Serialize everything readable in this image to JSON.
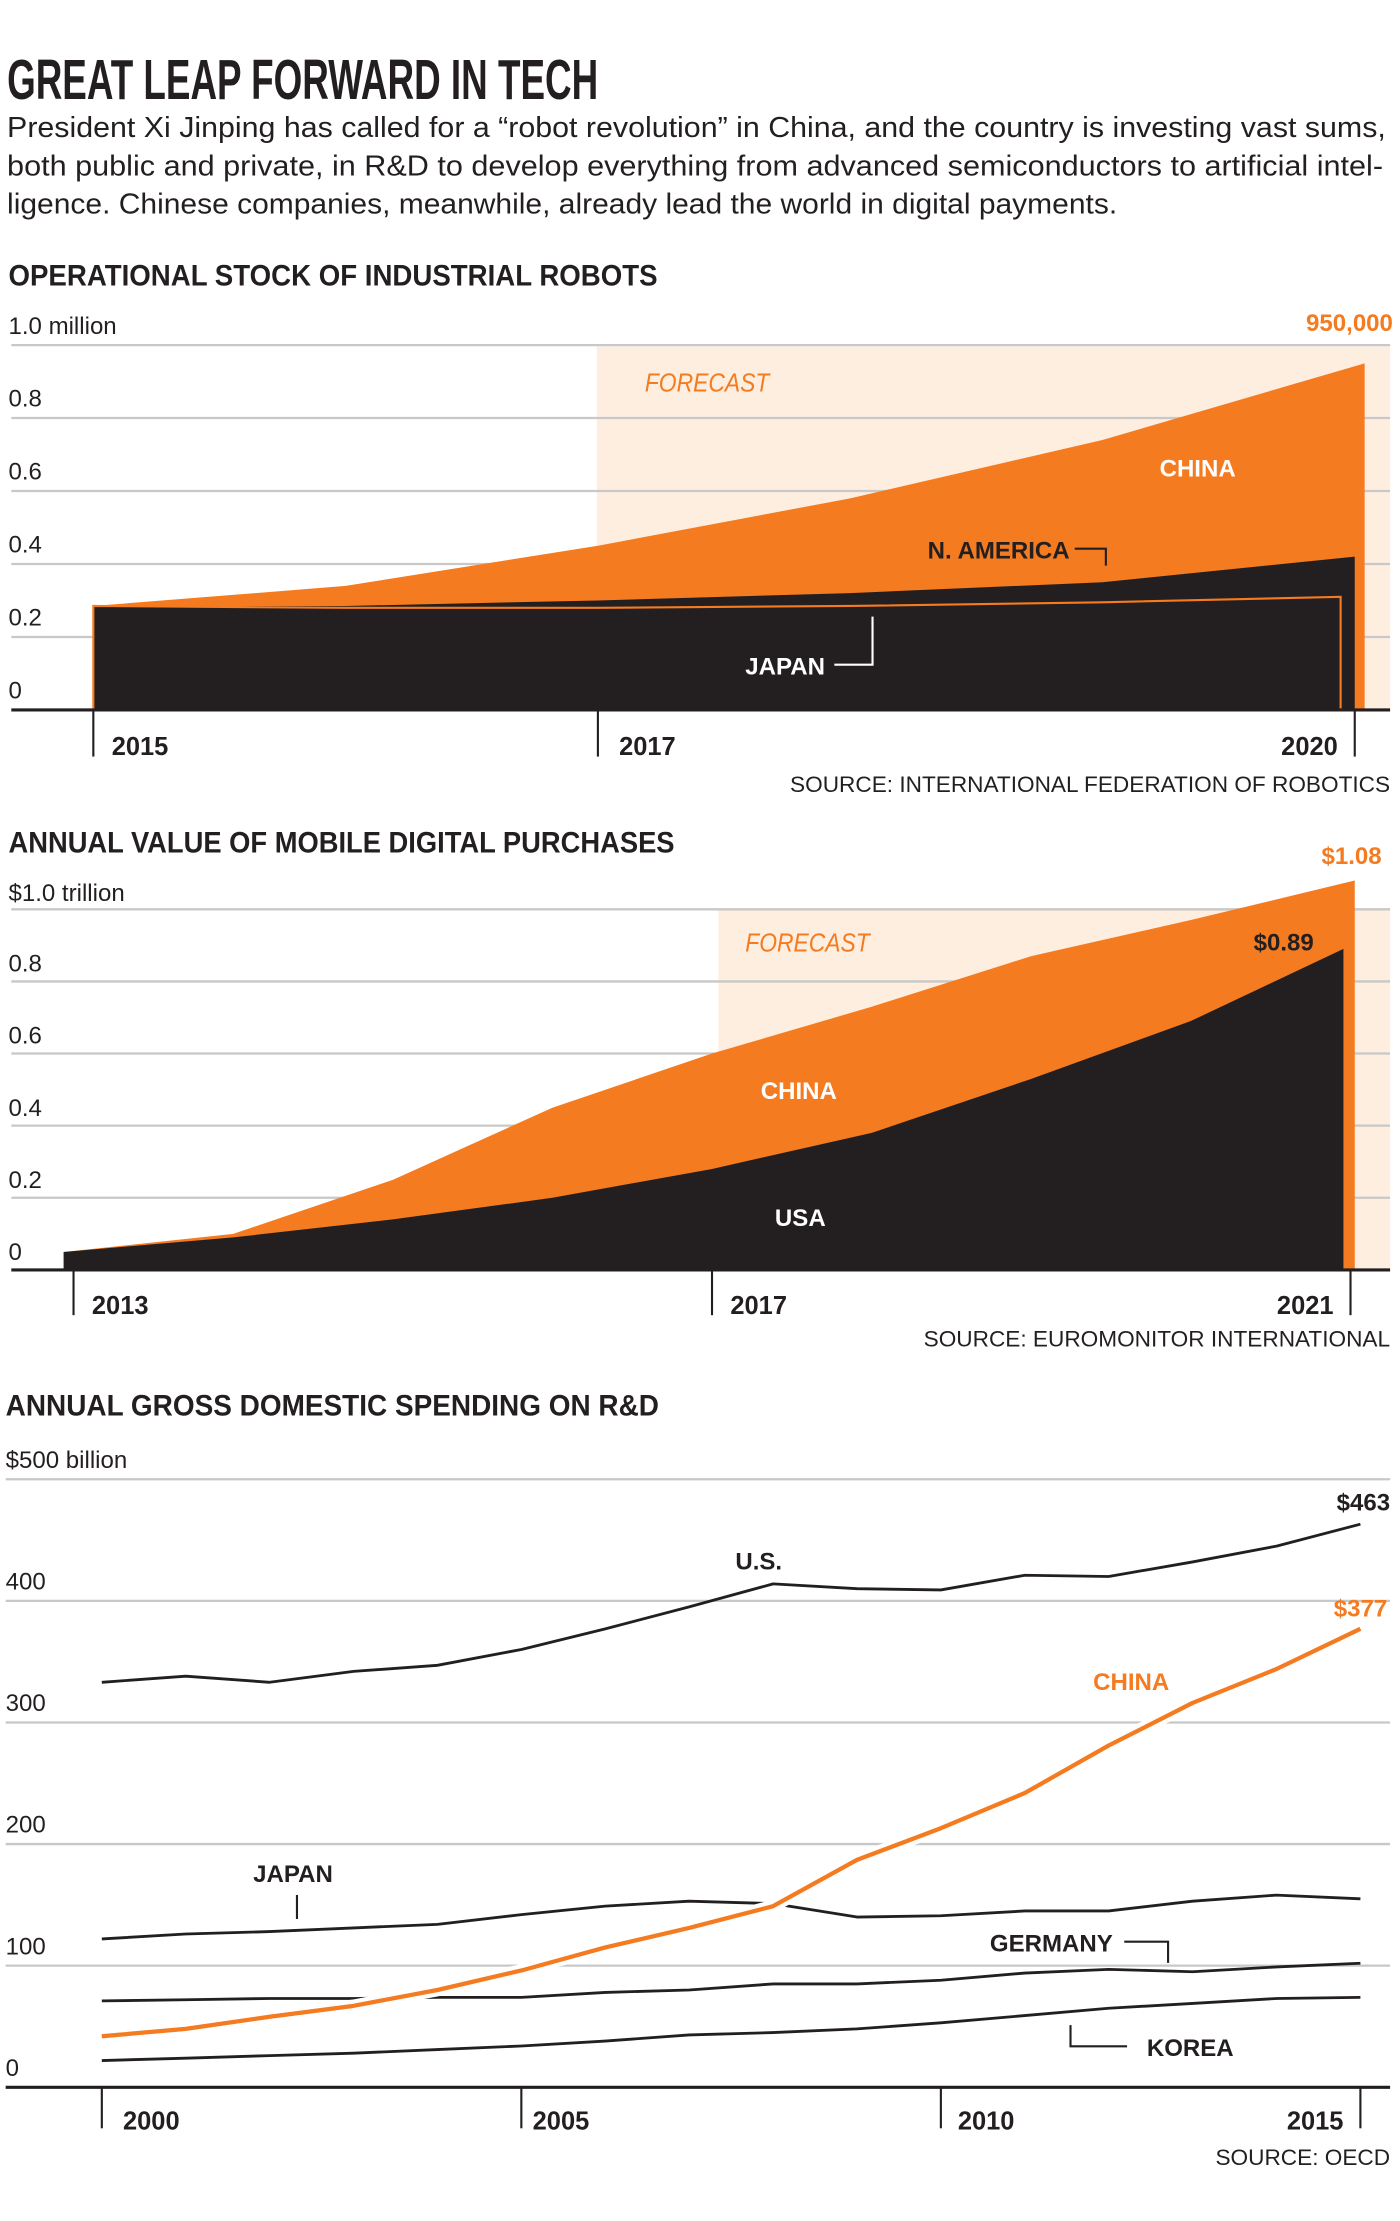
{
  "header": {
    "title": "GREAT LEAP FORWARD IN TECH",
    "intro_lines": [
      "President Xi Jinping has called for a “robot revolution” in China, and the country is investing vast sums,",
      "both public and private, in R&D to develop everything from advanced semiconductors to artificial intel-",
      "ligence. Chinese companies, meanwhile, already lead the world in digital payments."
    ]
  },
  "colors": {
    "orange": "#f47b20",
    "black": "#231f20",
    "forecast_bg": "#fdeee0",
    "grid": "#c8c8c8"
  },
  "chart_data": [
    {
      "type": "area",
      "title": "OPERATIONAL STOCK OF INDUSTRIAL ROBOTS",
      "ylabel": "1.0 million",
      "y_ticks": [
        "0",
        "0.2",
        "0.4",
        "0.6",
        "0.8"
      ],
      "ylim": [
        0,
        1.0
      ],
      "x": [
        2015,
        2016,
        2017,
        2018,
        2019,
        2020
      ],
      "x_ticks": [
        "2015",
        "2017",
        "2020"
      ],
      "forecast_label": "FORECAST",
      "forecast_from": 2017,
      "series": [
        {
          "name": "CHINA",
          "color": "#f47b20",
          "values": [
            0.285,
            0.34,
            0.45,
            0.58,
            0.74,
            0.95
          ]
        },
        {
          "name": "N. AMERICA",
          "color": "#231f20",
          "values": [
            0.285,
            0.285,
            0.3,
            0.32,
            0.35,
            0.42
          ]
        },
        {
          "name": "JAPAN",
          "color": "#231f20",
          "values": [
            0.285,
            0.28,
            0.28,
            0.285,
            0.295,
            0.31
          ]
        }
      ],
      "annotation": "950,000",
      "source": "SOURCE: INTERNATIONAL FEDERATION OF ROBOTICS",
      "grid": true
    },
    {
      "type": "area",
      "title": "ANNUAL VALUE OF MOBILE DIGITAL PURCHASES",
      "ylabel": "$1.0 trillion",
      "y_ticks": [
        "0",
        "0.2",
        "0.4",
        "0.6",
        "0.8"
      ],
      "ylim": [
        0,
        1.0
      ],
      "x": [
        2013,
        2014,
        2015,
        2016,
        2017,
        2018,
        2019,
        2020,
        2021
      ],
      "x_ticks": [
        "2013",
        "2017",
        "2021"
      ],
      "forecast_label": "FORECAST",
      "forecast_from": 2017,
      "series": [
        {
          "name": "CHINA",
          "color": "#f47b20",
          "values": [
            0.05,
            0.1,
            0.25,
            0.45,
            0.6,
            0.73,
            0.87,
            0.97,
            1.08
          ]
        },
        {
          "name": "USA",
          "color": "#231f20",
          "values": [
            0.05,
            0.09,
            0.14,
            0.2,
            0.28,
            0.38,
            0.53,
            0.69,
            0.89
          ]
        }
      ],
      "annotations": {
        "china_end": "$1.08",
        "usa_end": "$0.89"
      },
      "source": "SOURCE: EUROMONITOR INTERNATIONAL",
      "grid": true
    },
    {
      "type": "line",
      "title": "ANNUAL GROSS DOMESTIC SPENDING ON R&D",
      "ylabel": "$500 billion",
      "y_ticks": [
        "0",
        "100",
        "200",
        "300",
        "400"
      ],
      "ylim": [
        0,
        500
      ],
      "x": [
        2000,
        2001,
        2002,
        2003,
        2004,
        2005,
        2006,
        2007,
        2008,
        2009,
        2010,
        2011,
        2012,
        2013,
        2014,
        2015
      ],
      "x_ticks": [
        "2000",
        "2005",
        "2010",
        "2015"
      ],
      "series": [
        {
          "name": "U.S.",
          "color": "#231f20",
          "values": [
            333,
            338,
            333,
            342,
            347,
            360,
            377,
            395,
            414,
            410,
            409,
            421,
            420,
            432,
            445,
            463
          ]
        },
        {
          "name": "JAPAN",
          "color": "#231f20",
          "values": [
            122,
            126,
            128,
            131,
            134,
            142,
            149,
            153,
            151,
            140,
            141,
            145,
            145,
            153,
            158,
            155
          ]
        },
        {
          "name": "GERMANY",
          "color": "#231f20",
          "values": [
            71,
            72,
            73,
            73,
            74,
            74,
            78,
            80,
            85,
            85,
            88,
            94,
            97,
            95,
            99,
            102
          ]
        },
        {
          "name": "KOREA",
          "color": "#231f20",
          "values": [
            22,
            24,
            26,
            28,
            31,
            34,
            38,
            43,
            45,
            48,
            53,
            59,
            65,
            69,
            73,
            74
          ]
        },
        {
          "name": "CHINA",
          "color": "#f47b20",
          "values": [
            42,
            48,
            58,
            67,
            80,
            96,
            115,
            131,
            149,
            187,
            213,
            242,
            281,
            316,
            344,
            377
          ]
        }
      ],
      "annotations": {
        "us_end": "$463",
        "china_end": "$377"
      },
      "source": "SOURCE: OECD",
      "grid": true
    }
  ]
}
